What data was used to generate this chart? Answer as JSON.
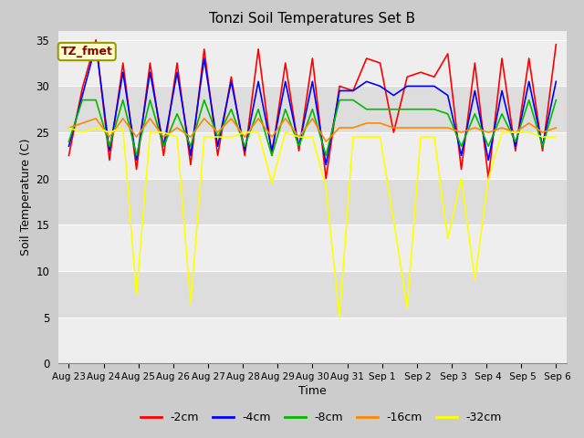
{
  "title": "Tonzi Soil Temperatures Set B",
  "xlabel": "Time",
  "ylabel": "Soil Temperature (C)",
  "annotation_label": "TZ_fmet",
  "ylim": [
    0,
    36
  ],
  "yticks": [
    0,
    5,
    10,
    15,
    20,
    25,
    30,
    35
  ],
  "legend": [
    "-2cm",
    "-4cm",
    "-8cm",
    "-16cm",
    "-32cm"
  ],
  "colors": [
    "#ff0000",
    "#0000ff",
    "#00bb00",
    "#ff8800",
    "#ffff00"
  ],
  "fig_bg": "#cccccc",
  "plot_bg_light": "#eeeeee",
  "plot_bg_dark": "#dddddd",
  "x_labels": [
    "Aug 23",
    "Aug 24",
    "Aug 25",
    "Aug 26",
    "Aug 27",
    "Aug 28",
    "Aug 29",
    "Aug 30",
    "Aug 31",
    "Sep 1",
    " Sep 2",
    " Sep 3",
    " Sep 4",
    " Sep 5",
    " Sep 6"
  ],
  "series": {
    "d2cm": [
      22.5,
      29.8,
      35.0,
      22.0,
      32.5,
      21.0,
      32.5,
      22.5,
      32.5,
      21.5,
      34.0,
      22.5,
      31.0,
      22.5,
      34.0,
      22.5,
      32.5,
      23.0,
      33.0,
      20.0,
      30.0,
      29.5,
      33.0,
      32.5,
      25.0,
      31.0,
      31.5,
      31.0,
      33.5,
      21.0,
      32.5,
      20.0,
      33.0,
      23.0,
      33.0,
      23.0,
      34.5
    ],
    "d4cm": [
      23.5,
      29.0,
      34.5,
      23.0,
      31.5,
      22.0,
      31.5,
      23.5,
      31.5,
      22.5,
      33.0,
      23.5,
      30.5,
      23.0,
      30.5,
      23.0,
      30.5,
      23.5,
      30.5,
      21.5,
      29.5,
      29.5,
      30.5,
      30.0,
      29.0,
      30.0,
      30.0,
      30.0,
      29.0,
      22.5,
      29.5,
      22.0,
      29.5,
      23.5,
      30.5,
      23.5,
      30.5
    ],
    "d8cm": [
      24.0,
      28.5,
      28.5,
      23.5,
      28.5,
      22.5,
      28.5,
      23.5,
      27.0,
      23.5,
      28.5,
      24.5,
      27.5,
      23.5,
      27.5,
      22.5,
      27.5,
      23.5,
      27.5,
      22.5,
      28.5,
      28.5,
      27.5,
      27.5,
      27.5,
      27.5,
      27.5,
      27.5,
      27.0,
      23.5,
      27.0,
      23.5,
      27.0,
      24.0,
      28.5,
      23.5,
      28.5
    ],
    "d16cm": [
      25.5,
      26.0,
      26.5,
      24.5,
      26.5,
      24.5,
      26.5,
      24.5,
      25.5,
      24.5,
      26.5,
      25.0,
      26.5,
      24.5,
      26.5,
      24.5,
      26.5,
      24.5,
      26.5,
      24.0,
      25.5,
      25.5,
      26.0,
      26.0,
      25.5,
      25.5,
      25.5,
      25.5,
      25.5,
      25.0,
      25.5,
      25.0,
      25.5,
      25.0,
      26.0,
      25.0,
      25.5
    ],
    "d32cm": [
      25.5,
      25.0,
      25.5,
      25.0,
      25.5,
      7.5,
      25.0,
      25.0,
      24.5,
      6.5,
      24.5,
      24.5,
      24.5,
      25.0,
      25.0,
      19.5,
      25.0,
      24.5,
      24.5,
      19.0,
      5.0,
      24.5,
      24.5,
      24.5,
      15.5,
      6.0,
      24.5,
      24.5,
      13.5,
      20.0,
      9.0,
      20.0,
      25.0,
      25.0,
      25.0,
      24.5,
      24.5
    ]
  }
}
